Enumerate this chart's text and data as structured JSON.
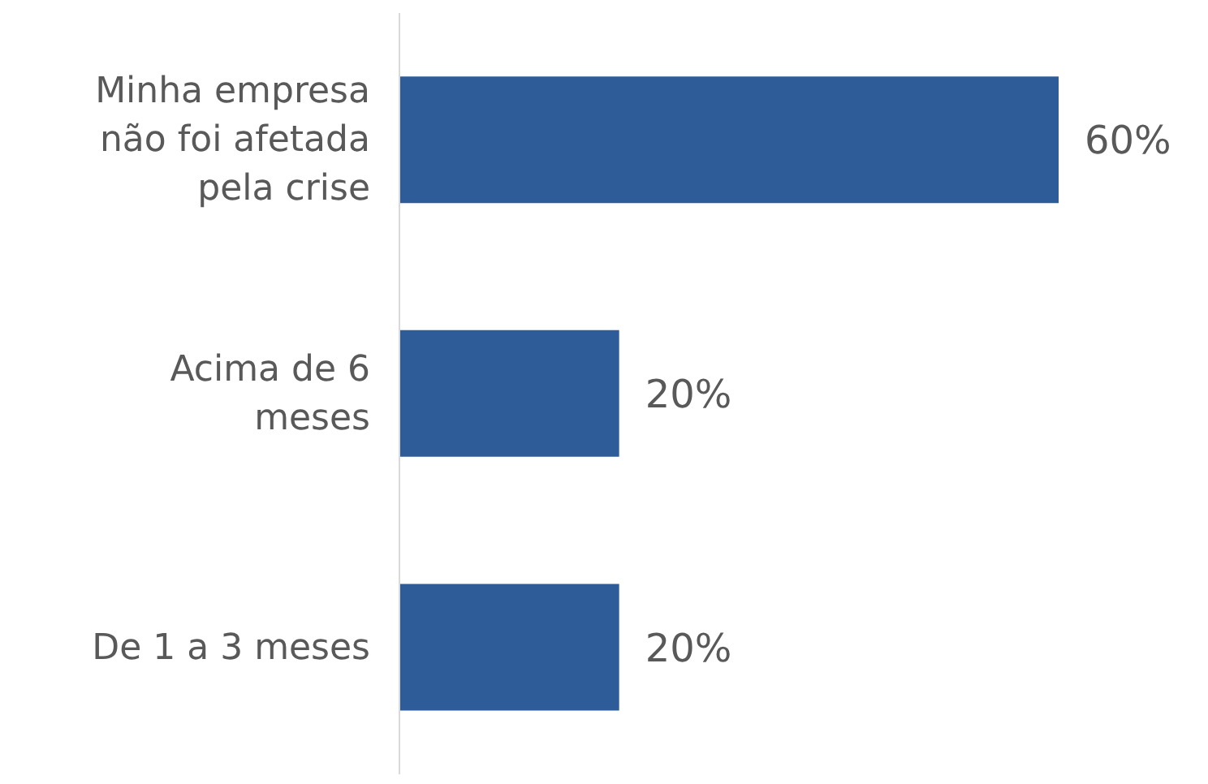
{
  "chart_data": {
    "type": "bar",
    "orientation": "horizontal",
    "categories": [
      "Minha empresa não foi afetada pela crise",
      "Acima de 6 meses",
      "De 1 a 3 meses"
    ],
    "values": [
      60,
      20,
      20
    ],
    "value_labels": [
      "60%",
      "20%",
      "20%"
    ],
    "color": "#2e5c99"
  }
}
